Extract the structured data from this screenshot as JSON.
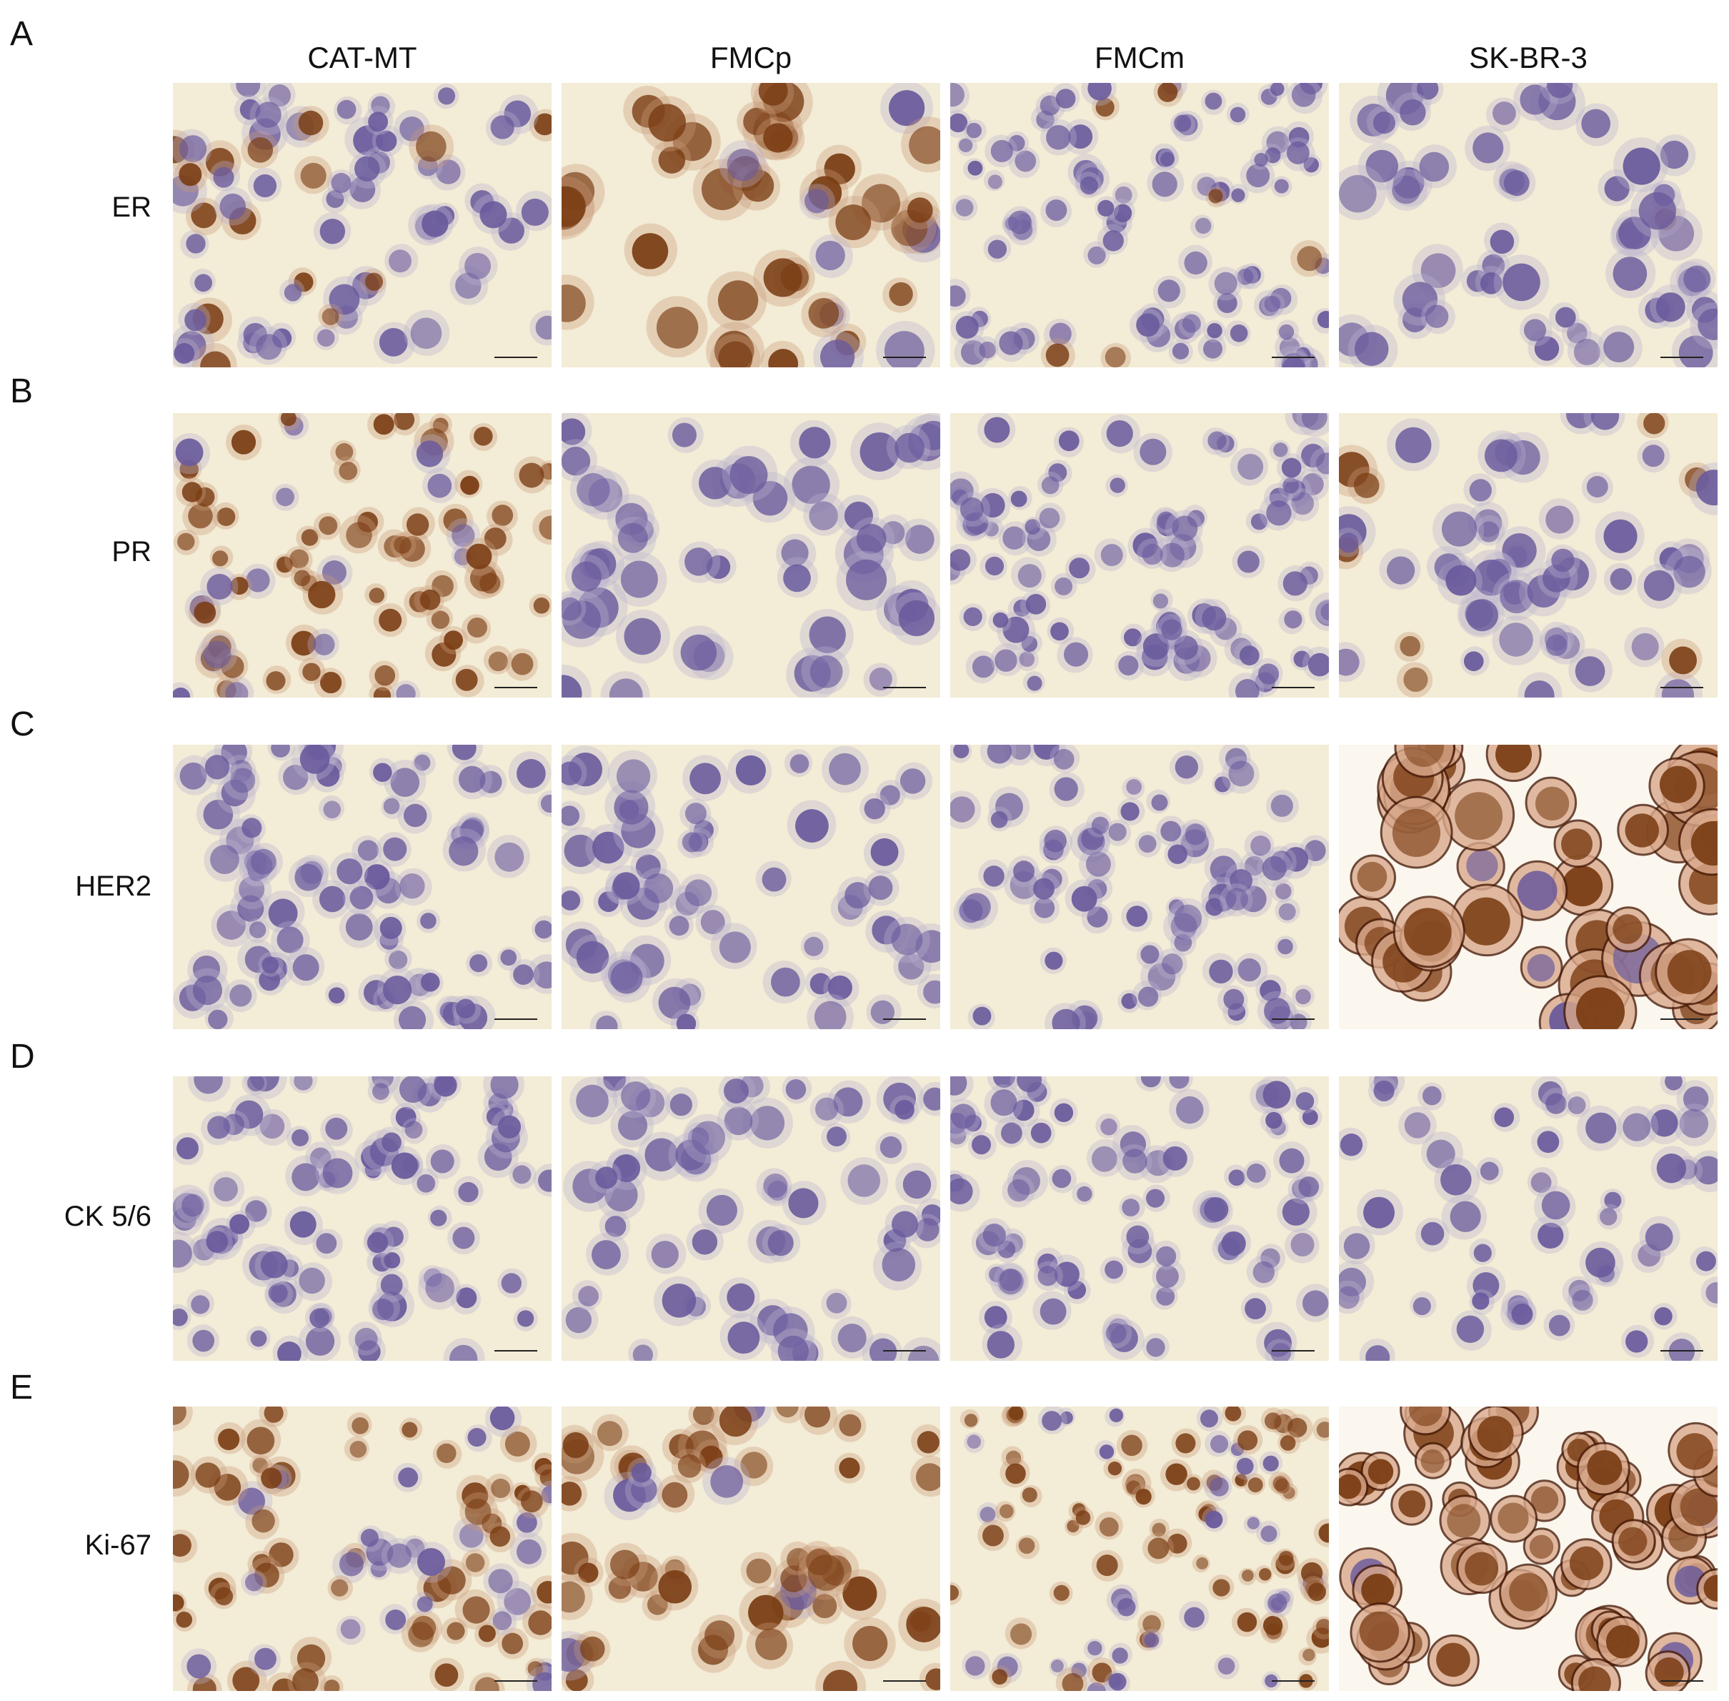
{
  "figure": {
    "columns": [
      "CAT-MT",
      "FMCp",
      "FMCm",
      "SK-BR-3"
    ],
    "rows": [
      {
        "letter": "A",
        "marker": "ER"
      },
      {
        "letter": "B",
        "marker": "PR"
      },
      {
        "letter": "C",
        "marker": "HER2"
      },
      {
        "letter": "D",
        "marker": "CK 5/6"
      },
      {
        "letter": "E",
        "marker": "Ki-67"
      }
    ],
    "colors": {
      "background": "#f3ecd6",
      "hematoxylin": "#6a5a9c",
      "dab_stain": "#7a3d14",
      "membrane": "#4a1d0a"
    }
  }
}
